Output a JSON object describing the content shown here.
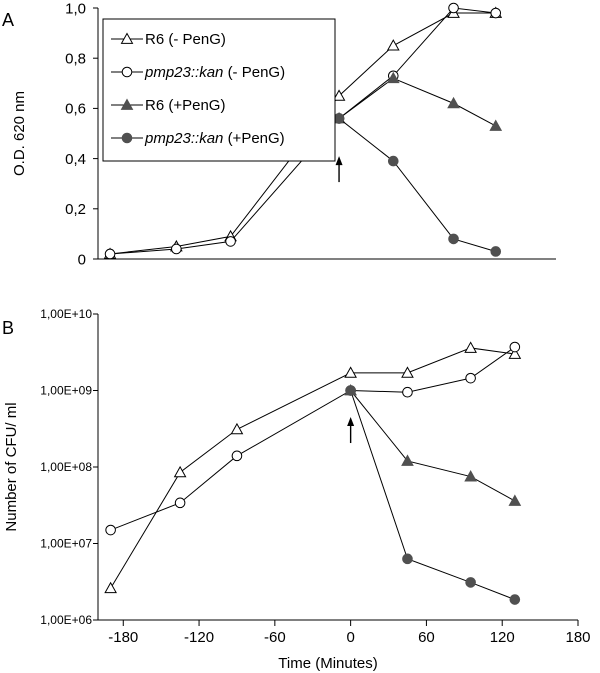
{
  "chart_data": [
    {
      "panel_label": "A",
      "type": "line",
      "ylabel": "O.D. 620 nm",
      "xlim": [
        -200,
        180
      ],
      "ylim": [
        0,
        1.0
      ],
      "yticks": [
        0,
        0.2,
        0.4,
        0.6,
        0.8,
        1.0
      ],
      "yticklabels": [
        "0",
        "0,2",
        "0,4",
        "0,6",
        "0,8",
        "1,0"
      ],
      "legend_position": "top-left",
      "series": [
        {
          "name": "R6",
          "name_suffix": "(- PenG)",
          "italic_name": false,
          "marker": "triangle-open",
          "x": [
            -190,
            -135,
            -90,
            0,
            45,
            95,
            130
          ],
          "y": [
            0.02,
            0.05,
            0.09,
            0.65,
            0.85,
            0.98,
            0.98
          ]
        },
        {
          "name": "pmp23::kan",
          "name_suffix": "(- PenG)",
          "italic_name": true,
          "marker": "circle-open",
          "x": [
            -190,
            -135,
            -90,
            0,
            45,
            95,
            130
          ],
          "y": [
            0.02,
            0.04,
            0.07,
            0.56,
            0.73,
            1.0,
            0.98
          ]
        },
        {
          "name": "R6",
          "name_suffix": "(+PenG)",
          "italic_name": false,
          "marker": "triangle-filled",
          "x": [
            0,
            45,
            95,
            130
          ],
          "y": [
            0.56,
            0.72,
            0.62,
            0.53
          ]
        },
        {
          "name": "pmp23::kan",
          "name_suffix": "(+PenG)",
          "italic_name": true,
          "marker": "circle-filled",
          "x": [
            0,
            45,
            95,
            130
          ],
          "y": [
            0.56,
            0.39,
            0.08,
            0.03
          ]
        }
      ],
      "annotations": [
        {
          "type": "arrow-up",
          "x": 0,
          "y": 0.41
        }
      ]
    },
    {
      "panel_label": "B",
      "type": "line",
      "ylabel": "Number of CFU/ ml",
      "xlabel": "Time (Minutes)",
      "y_scale": "log",
      "xlim": [
        -200,
        180
      ],
      "xticks": [
        -180,
        -120,
        -60,
        0,
        60,
        120,
        180
      ],
      "xticklabels": [
        "-180",
        "-120",
        "-60",
        "0",
        "60",
        "120",
        "180"
      ],
      "ylim": [
        1000000,
        10000000000
      ],
      "yticks": [
        1000000,
        10000000,
        100000000,
        1000000000,
        10000000000
      ],
      "yticklabels": [
        "1,00E+06",
        "1,00E+07",
        "1,00E+08",
        "1,00E+09",
        "1,00E+10"
      ],
      "series": [
        {
          "name": "R6",
          "name_suffix": "(- PenG)",
          "marker": "triangle-open",
          "x": [
            -190,
            -135,
            -90,
            0,
            45,
            95,
            130
          ],
          "y": [
            2600000,
            85000000,
            310000000,
            1700000000,
            1700000000,
            3600000000,
            3000000000
          ]
        },
        {
          "name": "pmp23::kan",
          "name_suffix": "(- PenG)",
          "marker": "circle-open",
          "x": [
            -190,
            -135,
            -90,
            0,
            45,
            95,
            130
          ],
          "y": [
            15000000,
            34000000,
            140000000,
            1000000000,
            950000000,
            1450000000,
            3700000000
          ]
        },
        {
          "name": "R6",
          "name_suffix": "(+PenG)",
          "marker": "triangle-filled",
          "x": [
            0,
            45,
            95,
            130
          ],
          "y": [
            1000000000,
            120000000,
            75000000,
            36000000
          ]
        },
        {
          "name": "pmp23::kan",
          "name_suffix": "(+PenG)",
          "marker": "circle-filled",
          "x": [
            0,
            45,
            95,
            130
          ],
          "y": [
            1000000000,
            6300000,
            3100000,
            1850000
          ]
        }
      ],
      "annotations": [
        {
          "type": "arrow-up",
          "x": 0,
          "y": 450000000
        }
      ]
    }
  ],
  "colors": {
    "line": "#000000",
    "filled_marker": "#505050",
    "open_marker_fill": "#ffffff"
  }
}
